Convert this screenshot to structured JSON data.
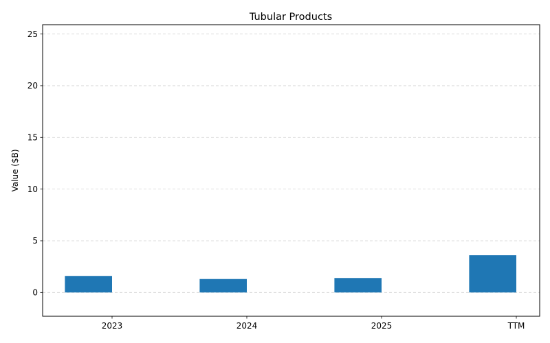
{
  "chart_data": {
    "type": "bar",
    "title": "Tubular Products",
    "xlabel": "",
    "ylabel": "Value ($B)",
    "categories": [
      "2023",
      "2024",
      "2025",
      "TTM"
    ],
    "values": [
      1.6,
      1.3,
      1.4,
      3.6
    ],
    "ylim": [
      -2.3,
      25.9
    ],
    "yticks": [
      0,
      5,
      10,
      15,
      20,
      25
    ],
    "grid": "y-dashed",
    "bar_color": "#1f77b4",
    "bar_alignment": "left-of-tick"
  }
}
